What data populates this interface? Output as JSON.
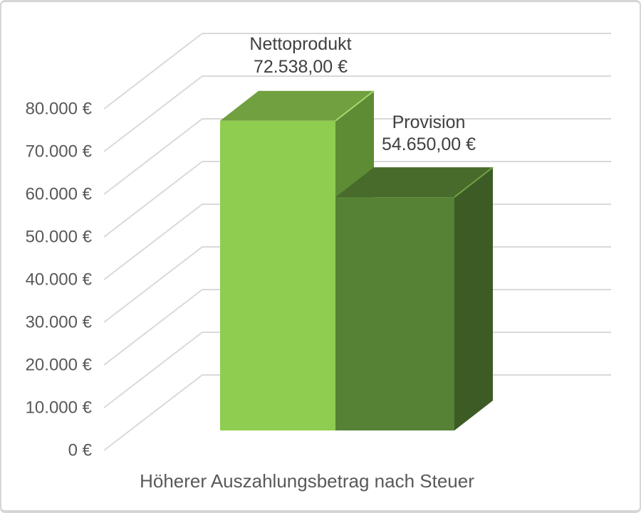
{
  "chart_data": {
    "type": "bar",
    "variant": "3d-clustered-column",
    "title": "",
    "xlabel": "Höherer Auszahlungsbetrag nach Steuer",
    "ylabel": "",
    "categories": [
      "Höherer Auszahlungsbetrag nach Steuer"
    ],
    "series": [
      {
        "name": "Nettoprodukt",
        "value": 72538,
        "data_label_value": "72.538,00 €"
      },
      {
        "name": "Provision",
        "value": 54650,
        "data_label_value": "54.650,00 €"
      }
    ],
    "y_axis": {
      "min": 0,
      "max": 80000,
      "step": 10000,
      "tick_labels": [
        "0 €",
        "10.000 €",
        "20.000 €",
        "30.000 €",
        "40.000 €",
        "50.000 €",
        "60.000 €",
        "70.000 €",
        "80.000 €"
      ]
    },
    "grid": true,
    "legend_position": "none"
  },
  "colors": {
    "background": "#ffffff",
    "frame_border": "#d6d6d6",
    "gridline": "#d9d9d9",
    "axis_text": "#595959",
    "data_label_text": "#404040",
    "title_text": "#595959",
    "bars": [
      {
        "front": "#8fcd50",
        "top": "#70a03f",
        "side": "#5e8c34",
        "edge": "#a9d66e"
      },
      {
        "front": "#558234",
        "top": "#486b2b",
        "side": "#3c5b25",
        "edge": "#71a144"
      }
    ]
  }
}
